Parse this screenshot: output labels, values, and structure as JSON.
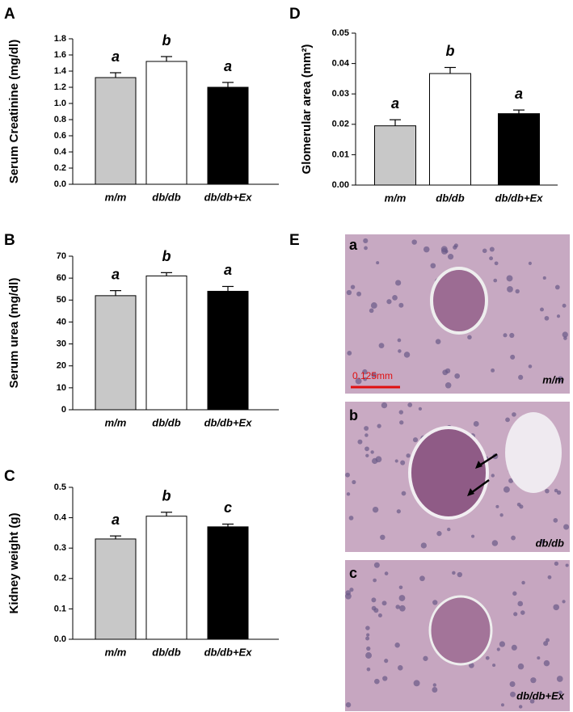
{
  "chart_data": [
    {
      "type": "bar",
      "panel_label": "A",
      "y_label": "Serum Creatinine (mg/dl)",
      "categories": [
        "m/m",
        "db/db",
        "db/db+Ex"
      ],
      "values": [
        1.32,
        1.52,
        1.2
      ],
      "errors": [
        0.06,
        0.06,
        0.06
      ],
      "annotations": [
        "a",
        "b",
        "a"
      ],
      "colors": [
        "#c8c8c8",
        "#ffffff",
        "#000000"
      ],
      "ylim": [
        0,
        1.8
      ],
      "yticks": [
        {
          "value": 0,
          "label": "0.0"
        },
        0.2,
        0.4,
        0.6,
        0.8,
        {
          "value": 1,
          "label": "1.0"
        },
        1.2,
        1.4,
        1.6,
        1.8
      ]
    },
    {
      "type": "bar",
      "panel_label": "B",
      "y_label": "Serum urea (mg/dl)",
      "categories": [
        "m/m",
        "db/db",
        "db/db+Ex"
      ],
      "values": [
        52,
        61,
        54
      ],
      "errors": [
        2.3,
        1.5,
        2.2
      ],
      "annotations": [
        "a",
        "b",
        "a"
      ],
      "colors": [
        "#c8c8c8",
        "#ffffff",
        "#000000"
      ],
      "ylim": [
        0,
        70
      ],
      "yticks": [
        0,
        10,
        20,
        30,
        40,
        50,
        60,
        70
      ]
    },
    {
      "type": "bar",
      "panel_label": "C",
      "y_label": "Kidney weight (g)",
      "categories": [
        "m/m",
        "db/db",
        "db/db+Ex"
      ],
      "values": [
        0.33,
        0.405,
        0.37
      ],
      "errors": [
        0.01,
        0.013,
        0.009
      ],
      "annotations": [
        "a",
        "b",
        "c"
      ],
      "colors": [
        "#c8c8c8",
        "#ffffff",
        "#000000"
      ],
      "ylim": [
        0,
        0.5
      ],
      "yticks": [
        {
          "value": 0,
          "label": "0.0"
        },
        0.1,
        0.2,
        0.3,
        0.4,
        0.5
      ]
    },
    {
      "type": "bar",
      "panel_label": "D",
      "y_label": "Glomerular area (mm²)",
      "categories": [
        "m/m",
        "db/db",
        "db/db+Ex"
      ],
      "values": [
        0.0195,
        0.0367,
        0.0235
      ],
      "errors": [
        0.002,
        0.002,
        0.0012
      ],
      "annotations": [
        "a",
        "b",
        "a"
      ],
      "colors": [
        "#c8c8c8",
        "#ffffff",
        "#000000"
      ],
      "ylim": [
        0,
        0.05
      ],
      "yticks": [
        {
          "value": 0,
          "label": "0.00"
        },
        0.01,
        0.02,
        0.03,
        0.04,
        0.05
      ]
    }
  ],
  "histology": {
    "panel_label": "E",
    "panels": [
      {
        "letter": "a",
        "caption": "m/m",
        "scale_bar": "0.125mm"
      },
      {
        "letter": "b",
        "caption": "db/db"
      },
      {
        "letter": "c",
        "caption": "db/db+Ex"
      }
    ]
  }
}
